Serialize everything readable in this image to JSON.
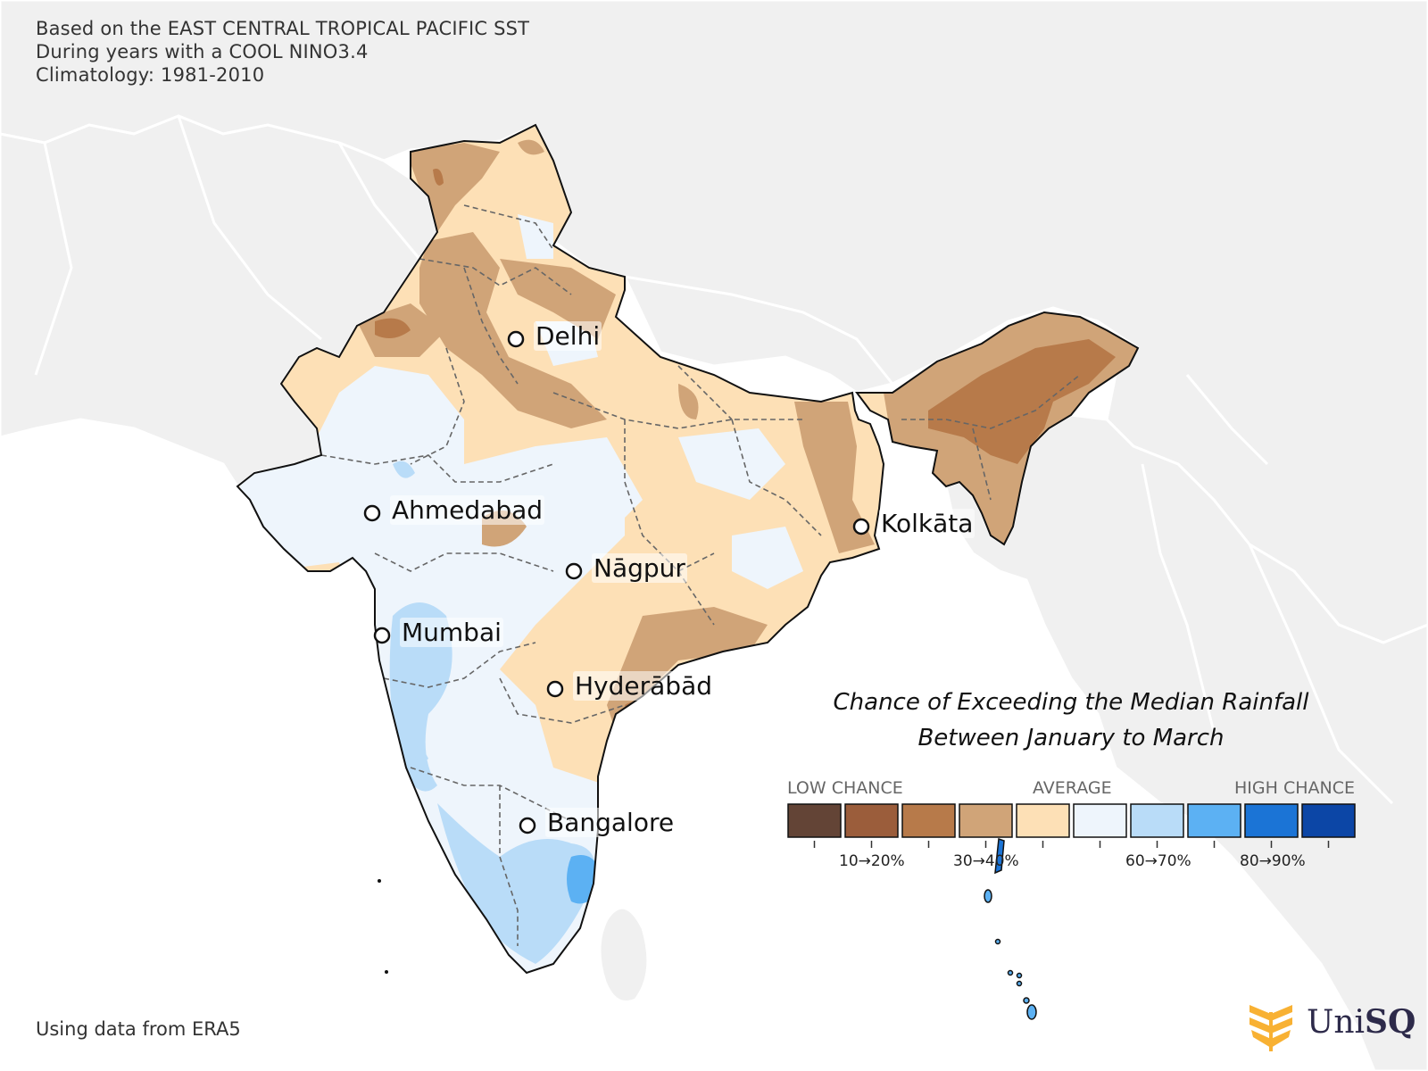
{
  "header": {
    "line1": "Based on the EAST CENTRAL TROPICAL PACIFIC SST",
    "line2": "During years with a COOL NINO3.4",
    "line3": "Climatology: 1981-2010"
  },
  "cities": [
    {
      "name": "Delhi"
    },
    {
      "name": "Ahmedabad"
    },
    {
      "name": "Kolkāta"
    },
    {
      "name": "Nāgpur"
    },
    {
      "name": "Mumbai"
    },
    {
      "name": "Hyderābād"
    },
    {
      "name": "Bangalore"
    }
  ],
  "title": {
    "line1": "Chance of Exceeding the Median Rainfall",
    "line2": "Between January to March"
  },
  "legend": {
    "low_label": "LOW CHANCE",
    "avg_label": "AVERAGE",
    "high_label": "HIGH CHANCE",
    "colors": [
      "#634436",
      "#9b5d3b",
      "#b77a4a",
      "#d0a478",
      "#fde0b6",
      "#eef5fc",
      "#b9dcf8",
      "#5cb1f3",
      "#1b74d6",
      "#0c46a6"
    ],
    "tick_labels": [
      "10→20%",
      "30→40%",
      "60→70%",
      "80→90%"
    ]
  },
  "map_colors": {
    "ocean": "#ffffff",
    "land_background": "#f0f0f0",
    "outline": "#111111",
    "state_border": "#666666"
  },
  "source": "Using data from ERA5",
  "logo": {
    "prefix": "Uni",
    "suffix": "SQ",
    "mark_color": "#f8b133"
  }
}
